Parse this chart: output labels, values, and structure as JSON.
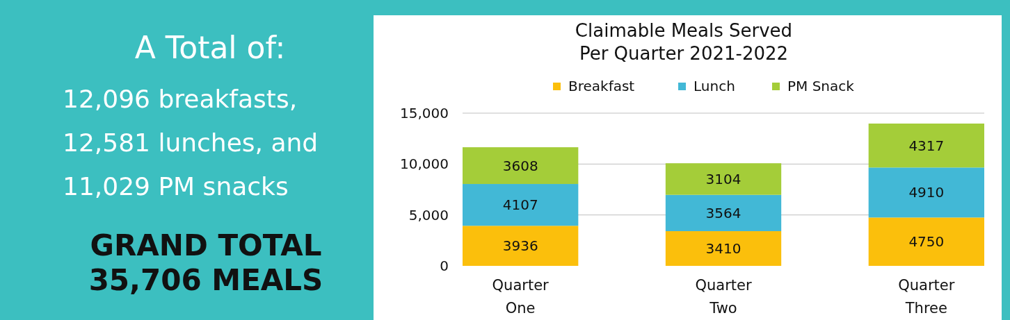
{
  "chart_data": [
    {
      "type": "other",
      "title": "A Total of:",
      "annotations": [
        "12,096 breakfasts,",
        "12,581 lunches, and",
        "11,029 PM snacks"
      ],
      "subtitle": "GRAND TOTAL 35,706 MEALS"
    },
    {
      "type": "bar",
      "title": "Claimable Meals Served Per Quarter 2021-2022",
      "categories": [
        "Quarter One",
        "Quarter Two",
        "Quarter Three"
      ],
      "stacked": true,
      "series": [
        {
          "name": "Breakfast",
          "color": "#fbbf0c",
          "values": [
            3936,
            3410,
            4750
          ]
        },
        {
          "name": "Lunch",
          "color": "#42b8d6",
          "values": [
            4107,
            3564,
            4910
          ]
        },
        {
          "name": "PM Snack",
          "color": "#a4cd39",
          "values": [
            3608,
            3104,
            4317
          ]
        }
      ],
      "ylim": [
        0,
        15000
      ],
      "yticks": [
        0,
        {
          "value": 5000,
          "label": "5,000"
        },
        {
          "value": 10000,
          "label": "10,000"
        },
        {
          "value": 15000,
          "label": "15,000"
        }
      ],
      "grid": "y",
      "legend": "top",
      "data_labels": true
    }
  ]
}
